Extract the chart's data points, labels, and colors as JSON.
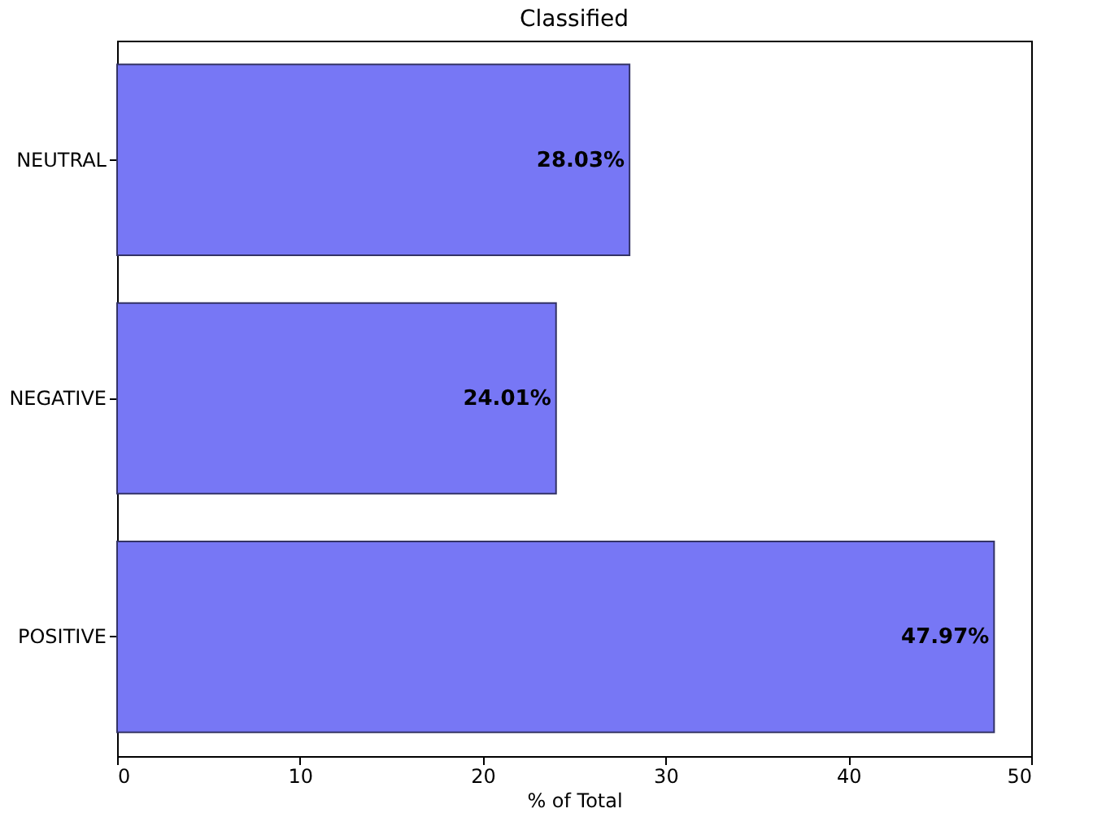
{
  "chart_data": {
    "type": "bar",
    "orientation": "horizontal",
    "title": "Classified",
    "xlabel": "% of Total",
    "categories": [
      "NEUTRAL",
      "NEGATIVE",
      "POSITIVE"
    ],
    "values": [
      28.03,
      24.01,
      47.97
    ],
    "color": "#7777f5",
    "value_labels": [
      "28.03%",
      "24.01%",
      "47.97%"
    ],
    "xlim": [
      0,
      50
    ],
    "xticks": [
      0,
      10,
      20,
      30,
      40,
      50
    ],
    "grid": false
  }
}
